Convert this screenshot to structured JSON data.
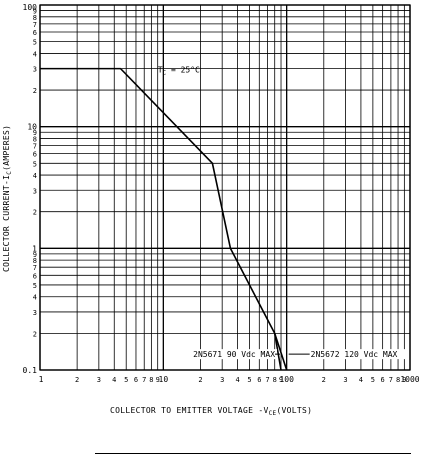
{
  "chart_data": {
    "type": "line",
    "title": "",
    "xlabel": "COLLECTOR TO EMITTER VOLTAGE -V",
    "xlabel_sub": "CE",
    "xlabel_suffix": "(VOLTS)",
    "ylabel": "COLLECTOR CURRENT-I",
    "ylabel_sub": "C",
    "ylabel_suffix": "(AMPERES)",
    "x_scale": "log",
    "y_scale": "log",
    "xlim": [
      1,
      1000
    ],
    "ylim": [
      0.1,
      100
    ],
    "grid": true,
    "x_tick_labels": [
      {
        "v": 1,
        "t": "1",
        "major": true
      },
      {
        "v": 2,
        "t": "2"
      },
      {
        "v": 3,
        "t": "3"
      },
      {
        "v": 4,
        "t": "4"
      },
      {
        "v": 5,
        "t": "5"
      },
      {
        "v": 6,
        "t": "6"
      },
      {
        "v": 7,
        "t": "7"
      },
      {
        "v": 8,
        "t": "8"
      },
      {
        "v": 9,
        "t": "9"
      },
      {
        "v": 10,
        "t": "10",
        "major": true
      },
      {
        "v": 20,
        "t": "2"
      },
      {
        "v": 30,
        "t": "3"
      },
      {
        "v": 40,
        "t": "4"
      },
      {
        "v": 50,
        "t": "5"
      },
      {
        "v": 60,
        "t": "6"
      },
      {
        "v": 70,
        "t": "7"
      },
      {
        "v": 80,
        "t": "8"
      },
      {
        "v": 90,
        "t": "9"
      },
      {
        "v": 100,
        "t": "100",
        "major": true
      },
      {
        "v": 200,
        "t": "2"
      },
      {
        "v": 300,
        "t": "3"
      },
      {
        "v": 400,
        "t": "4"
      },
      {
        "v": 500,
        "t": "5"
      },
      {
        "v": 600,
        "t": "6"
      },
      {
        "v": 700,
        "t": "7"
      },
      {
        "v": 800,
        "t": "8"
      },
      {
        "v": 900,
        "t": "9"
      },
      {
        "v": 1000,
        "t": "1000",
        "major": true
      }
    ],
    "y_tick_labels": [
      {
        "v": 0.1,
        "t": "0.1",
        "major": true
      },
      {
        "v": 0.2,
        "t": "2"
      },
      {
        "v": 0.3,
        "t": "3"
      },
      {
        "v": 0.4,
        "t": "4"
      },
      {
        "v": 0.5,
        "t": "5"
      },
      {
        "v": 0.6,
        "t": "6"
      },
      {
        "v": 0.7,
        "t": "7"
      },
      {
        "v": 0.8,
        "t": "8"
      },
      {
        "v": 0.9,
        "t": "9"
      },
      {
        "v": 1,
        "t": "1",
        "major": true
      },
      {
        "v": 2,
        "t": "2"
      },
      {
        "v": 3,
        "t": "3"
      },
      {
        "v": 4,
        "t": "4"
      },
      {
        "v": 5,
        "t": "5"
      },
      {
        "v": 6,
        "t": "6"
      },
      {
        "v": 7,
        "t": "7"
      },
      {
        "v": 8,
        "t": "8"
      },
      {
        "v": 9,
        "t": "9"
      },
      {
        "v": 10,
        "t": "10",
        "major": true
      },
      {
        "v": 20,
        "t": "2"
      },
      {
        "v": 30,
        "t": "3"
      },
      {
        "v": 40,
        "t": "4"
      },
      {
        "v": 50,
        "t": "5"
      },
      {
        "v": 60,
        "t": "6"
      },
      {
        "v": 70,
        "t": "7"
      },
      {
        "v": 80,
        "t": "8"
      },
      {
        "v": 90,
        "t": "9"
      },
      {
        "v": 100,
        "t": "100",
        "major": true
      }
    ],
    "series": [
      {
        "points": [
          {
            "x": 1,
            "y": 30
          },
          {
            "x": 4.5,
            "y": 30
          },
          {
            "x": 25,
            "y": 5
          },
          {
            "x": 35,
            "y": 1
          },
          {
            "x": 80,
            "y": 0.2
          },
          {
            "x": 90,
            "y": 0.1
          }
        ]
      },
      {
        "points": [
          {
            "x": 80,
            "y": 0.2
          },
          {
            "x": 100,
            "y": 0.1
          }
        ]
      }
    ],
    "annotations": {
      "temperature": {
        "main": "T",
        "sub": "C",
        "rest": " = 25°C",
        "x": 9,
        "y": 28
      },
      "label_90": {
        "text": "2N5671 90 Vdc MAX",
        "x": 90,
        "y": 0.13
      },
      "label_120": {
        "text": "2N5672 120 Vdc MAX",
        "x": 100,
        "y": 0.13
      }
    }
  }
}
